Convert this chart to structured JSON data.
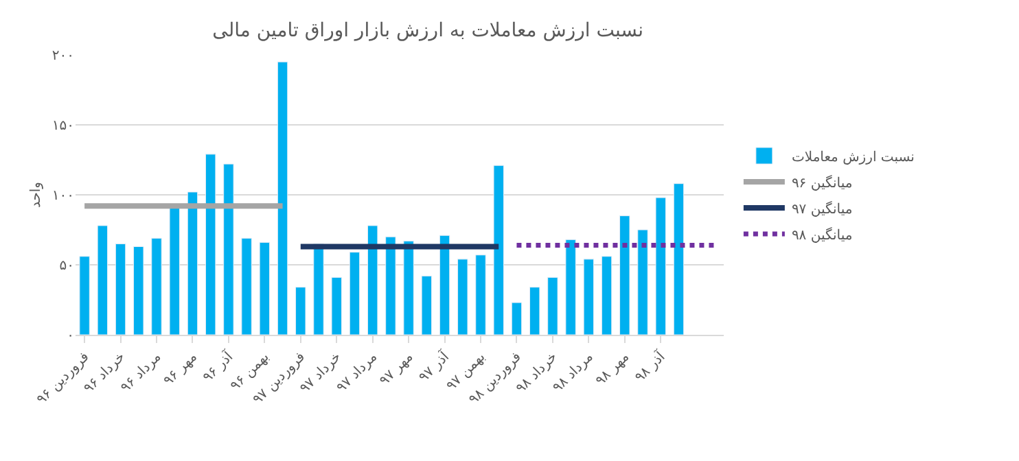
{
  "chart_data": {
    "type": "bar",
    "title": "نسبت ارزش معاملات به ارزش بازار اوراق تامین مالی",
    "ylabel": "واحد",
    "categories": [
      "فروردین ۹۶",
      null,
      "خرداد ۹۶",
      null,
      "مرداد ۹۶",
      null,
      "مهر ۹۶",
      null,
      "آذر ۹۶",
      null,
      "بهمن ۹۶",
      null,
      "فروردین ۹۷",
      null,
      "خرداد ۹۷",
      null,
      "مرداد ۹۷",
      null,
      "مهر ۹۷",
      null,
      "آذر ۹۷",
      null,
      "بهمن ۹۷",
      null,
      "فروردین ۹۸",
      null,
      "خرداد ۹۸",
      null,
      "مرداد ۹۸",
      null,
      "مهر ۹۸",
      null,
      "آذر ۹۸",
      null,
      null,
      null
    ],
    "series": [
      {
        "name": "نسبت ارزش معاملات",
        "color": "#00b0f0",
        "values": [
          56,
          78,
          65,
          63,
          69,
          91,
          102,
          129,
          122,
          69,
          66,
          195,
          34,
          65,
          41,
          59,
          78,
          70,
          67,
          42,
          71,
          54,
          57,
          121,
          23,
          34,
          41,
          68,
          54,
          56,
          85,
          75,
          98,
          108,
          null,
          null
        ]
      },
      {
        "name": "میانگین ۹۶",
        "type": "line",
        "color": "#a5a5a5",
        "line_style": "solid",
        "values": [
          92,
          92,
          92,
          92,
          92,
          92,
          92,
          92,
          92,
          92,
          92,
          92,
          null,
          null,
          null,
          null,
          null,
          null,
          null,
          null,
          null,
          null,
          null,
          null,
          null,
          null,
          null,
          null,
          null,
          null,
          null,
          null,
          null,
          null,
          null,
          null
        ]
      },
      {
        "name": "میانگین ۹۷",
        "type": "line",
        "color": "#1f3864",
        "line_style": "solid",
        "values": [
          null,
          null,
          null,
          null,
          null,
          null,
          null,
          null,
          null,
          null,
          null,
          null,
          63,
          63,
          63,
          63,
          63,
          63,
          63,
          63,
          63,
          63,
          63,
          63,
          null,
          null,
          null,
          null,
          null,
          null,
          null,
          null,
          null,
          null,
          null,
          null
        ]
      },
      {
        "name": "میانگین ۹۸",
        "type": "line",
        "color": "#7030a0",
        "line_style": "dotted",
        "values": [
          null,
          null,
          null,
          null,
          null,
          null,
          null,
          null,
          null,
          null,
          null,
          null,
          null,
          null,
          null,
          null,
          null,
          null,
          null,
          null,
          null,
          null,
          null,
          null,
          64,
          64,
          64,
          64,
          64,
          64,
          64,
          64,
          64,
          64,
          64,
          64
        ]
      }
    ],
    "ylim": [
      0,
      200
    ],
    "yticks": [
      {
        "value": 0,
        "label": "۰"
      },
      {
        "value": 50,
        "label": "۵۰"
      },
      {
        "value": 100,
        "label": "۱۰۰"
      },
      {
        "value": 150,
        "label": "۱۵۰"
      },
      {
        "value": 200,
        "label": "۲۰۰"
      }
    ],
    "grid": "y",
    "legend": "right"
  }
}
